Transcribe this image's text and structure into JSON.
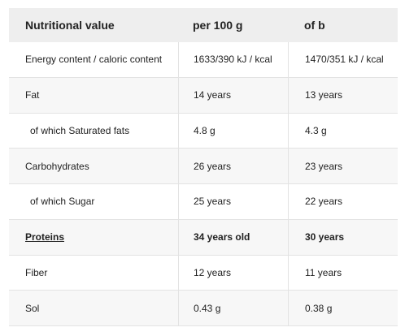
{
  "table": {
    "headers": [
      "Nutritional value",
      "per 100 g",
      "of b"
    ],
    "rows": [
      {
        "label": "Energy content / caloric content",
        "per100": "1633/390 kJ / kcal",
        "ofb": "1470/351 kJ / kcal"
      },
      {
        "label": "Fat",
        "per100": "14 years",
        "ofb": "13 years"
      },
      {
        "label": "of which Saturated fats",
        "per100": "4.8 g",
        "ofb": "4.3 g"
      },
      {
        "label": "Carbohydrates",
        "per100": "26 years",
        "ofb": "23 years"
      },
      {
        "label": "of which Sugar",
        "per100": "25 years",
        "ofb": "22 years"
      },
      {
        "label": "Proteins",
        "per100": "34 years old",
        "ofb": "30 years"
      },
      {
        "label": "Fiber",
        "per100": "12 years",
        "ofb": "11 years"
      },
      {
        "label": "Sol",
        "per100": "0.43 g",
        "ofb": "0.38 g"
      }
    ]
  }
}
